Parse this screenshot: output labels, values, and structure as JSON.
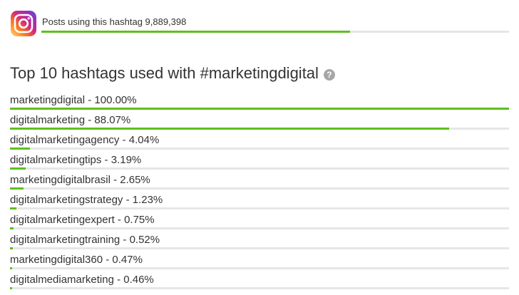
{
  "header": {
    "posts_text": "Posts using this hashtag 9,889,398",
    "posts_progress_fraction": 0.66,
    "icon": "instagram-icon"
  },
  "title": "Top 10 hashtags used with #marketingdigital",
  "help_icon": "question-circle-icon",
  "colors": {
    "accent": "#5fbf1e",
    "track": "#e6e6e6",
    "text": "#333333"
  },
  "hashtags": [
    {
      "label": "marketingdigital - 100.00%",
      "percent": 100.0
    },
    {
      "label": "digitalmarketing - 88.07%",
      "percent": 88.07
    },
    {
      "label": "digitalmarketingagency - 4.04%",
      "percent": 4.04
    },
    {
      "label": "digitalmarketingtips - 3.19%",
      "percent": 3.19
    },
    {
      "label": "marketingdigitalbrasil - 2.65%",
      "percent": 2.65
    },
    {
      "label": "digitalmarketingstrategy - 1.23%",
      "percent": 1.23
    },
    {
      "label": "digitalmarketingexpert - 0.75%",
      "percent": 0.75
    },
    {
      "label": "digitalmarketingtraining - 0.52%",
      "percent": 0.52
    },
    {
      "label": "marketingdigital360 - 0.47%",
      "percent": 0.47
    },
    {
      "label": "digitalmediamarketing - 0.46%",
      "percent": 0.46
    }
  ]
}
